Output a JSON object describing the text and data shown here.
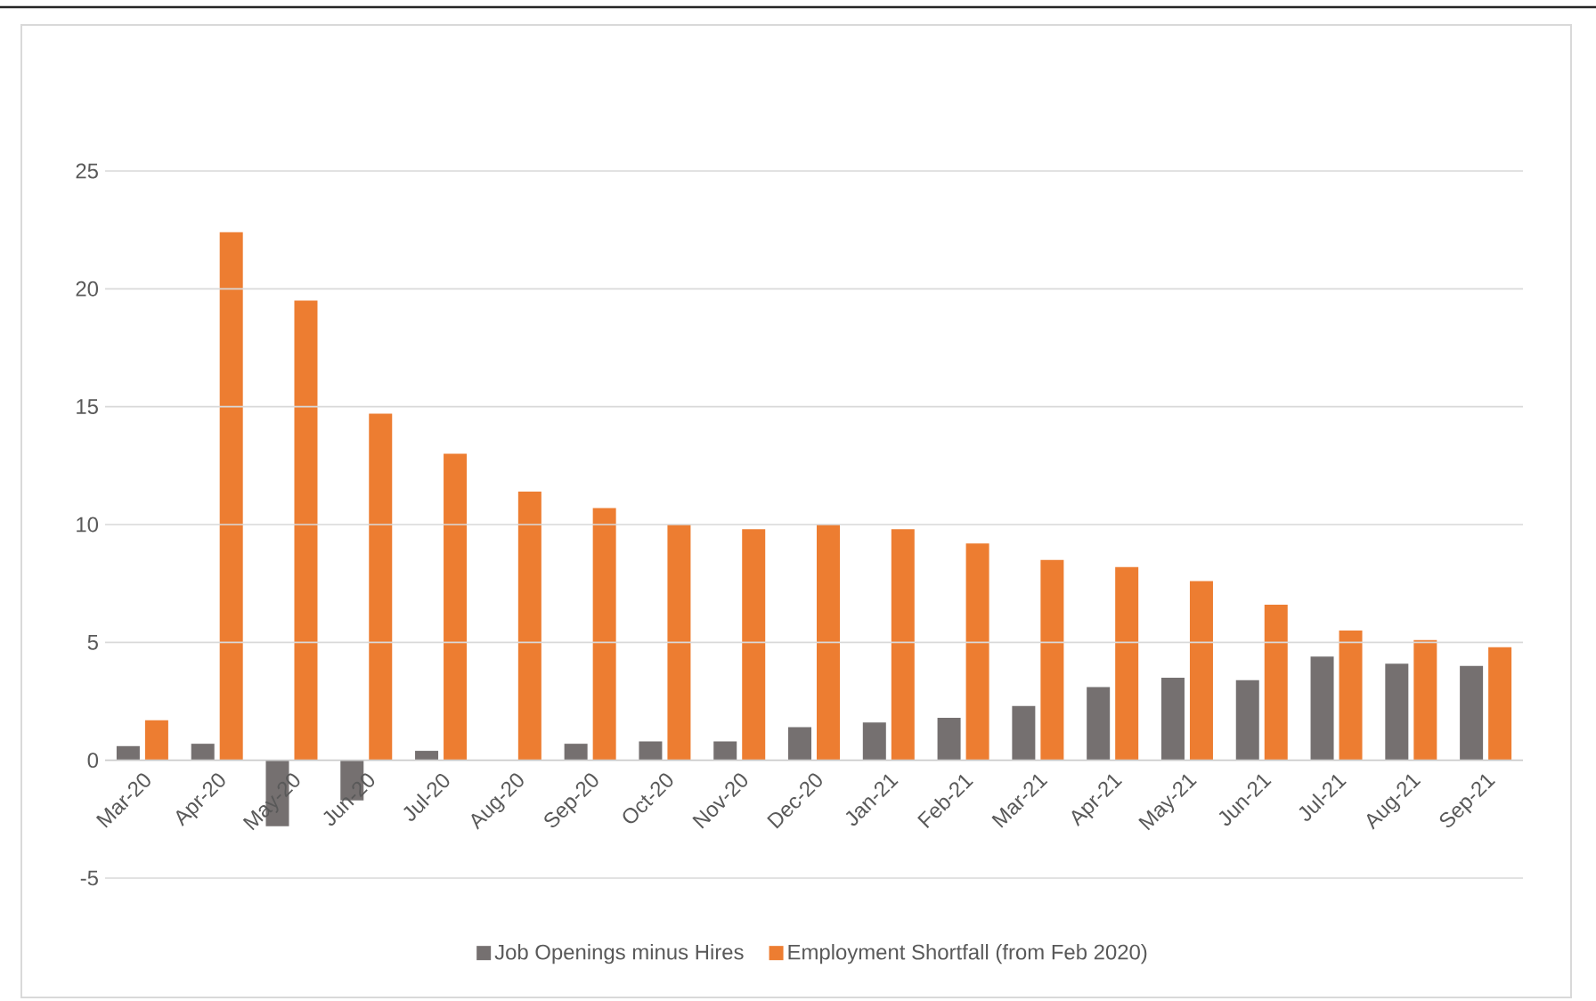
{
  "chart_data": {
    "type": "bar",
    "categories": [
      "Mar-20",
      "Apr-20",
      "May-20",
      "Jun-20",
      "Jul-20",
      "Aug-20",
      "Sep-20",
      "Oct-20",
      "Nov-20",
      "Dec-20",
      "Jan-21",
      "Feb-21",
      "Mar-21",
      "Apr-21",
      "May-21",
      "Jun-21",
      "Jul-21",
      "Aug-21",
      "Sep-21"
    ],
    "series": [
      {
        "name": "Job Openings minus Hires",
        "color": "#757070",
        "values": [
          0.6,
          0.7,
          -2.8,
          -1.7,
          0.4,
          0,
          0.7,
          0.8,
          0.8,
          1.4,
          1.6,
          1.8,
          2.3,
          3.1,
          3.5,
          3.4,
          4.4,
          4.1,
          4.0
        ]
      },
      {
        "name": "Employment Shortfall (from Feb 2020)",
        "color": "#ed7d31",
        "values": [
          1.7,
          22.4,
          19.5,
          14.7,
          13.0,
          11.4,
          10.7,
          10.0,
          9.8,
          10.0,
          9.8,
          9.2,
          8.5,
          8.2,
          7.6,
          6.6,
          5.5,
          5.1,
          4.8
        ]
      }
    ],
    "ylim": [
      -5,
      25
    ],
    "yticks": [
      -5,
      0,
      5,
      10,
      15,
      20,
      25
    ],
    "grid": "y",
    "legend": "bottom"
  }
}
